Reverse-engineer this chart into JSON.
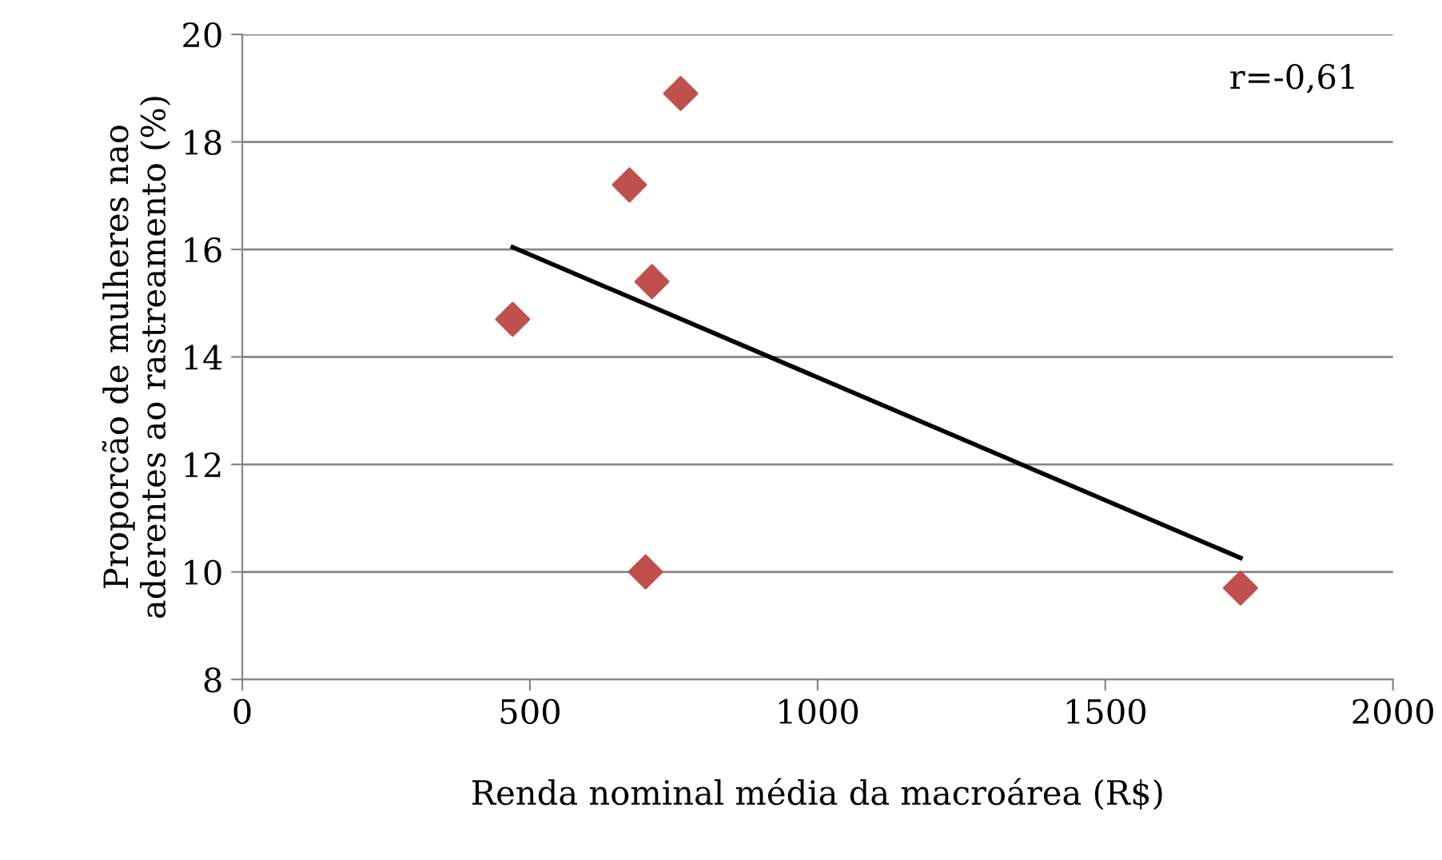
{
  "chart_data": {
    "type": "scatter",
    "xlabel": "Renda nominal média da macroárea (R$)",
    "ylabel": "Proporcão de mulheres nao\naderentes ao rastreamento (%)",
    "annotations": [
      "r=-0,61"
    ],
    "xlim": [
      0,
      2000
    ],
    "xticks": [
      0,
      500,
      1000,
      1500,
      2000
    ],
    "ylim": [
      8,
      20
    ],
    "yticks": [
      8,
      10,
      12,
      14,
      16,
      18,
      20
    ],
    "grid": "y",
    "marker": "diamond",
    "series": [
      {
        "color": "#c0504d",
        "x": [
          470,
          673,
          762,
          712,
          701,
          1735
        ],
        "values": [
          14.7,
          17.2,
          18.9,
          15.4,
          10.0,
          9.7
        ]
      },
      {
        "type": "line",
        "color": "#000000",
        "x": [
          470,
          1735
        ],
        "values": [
          16.04,
          10.26
        ],
        "marker": "none",
        "line_style": "solid"
      }
    ]
  }
}
